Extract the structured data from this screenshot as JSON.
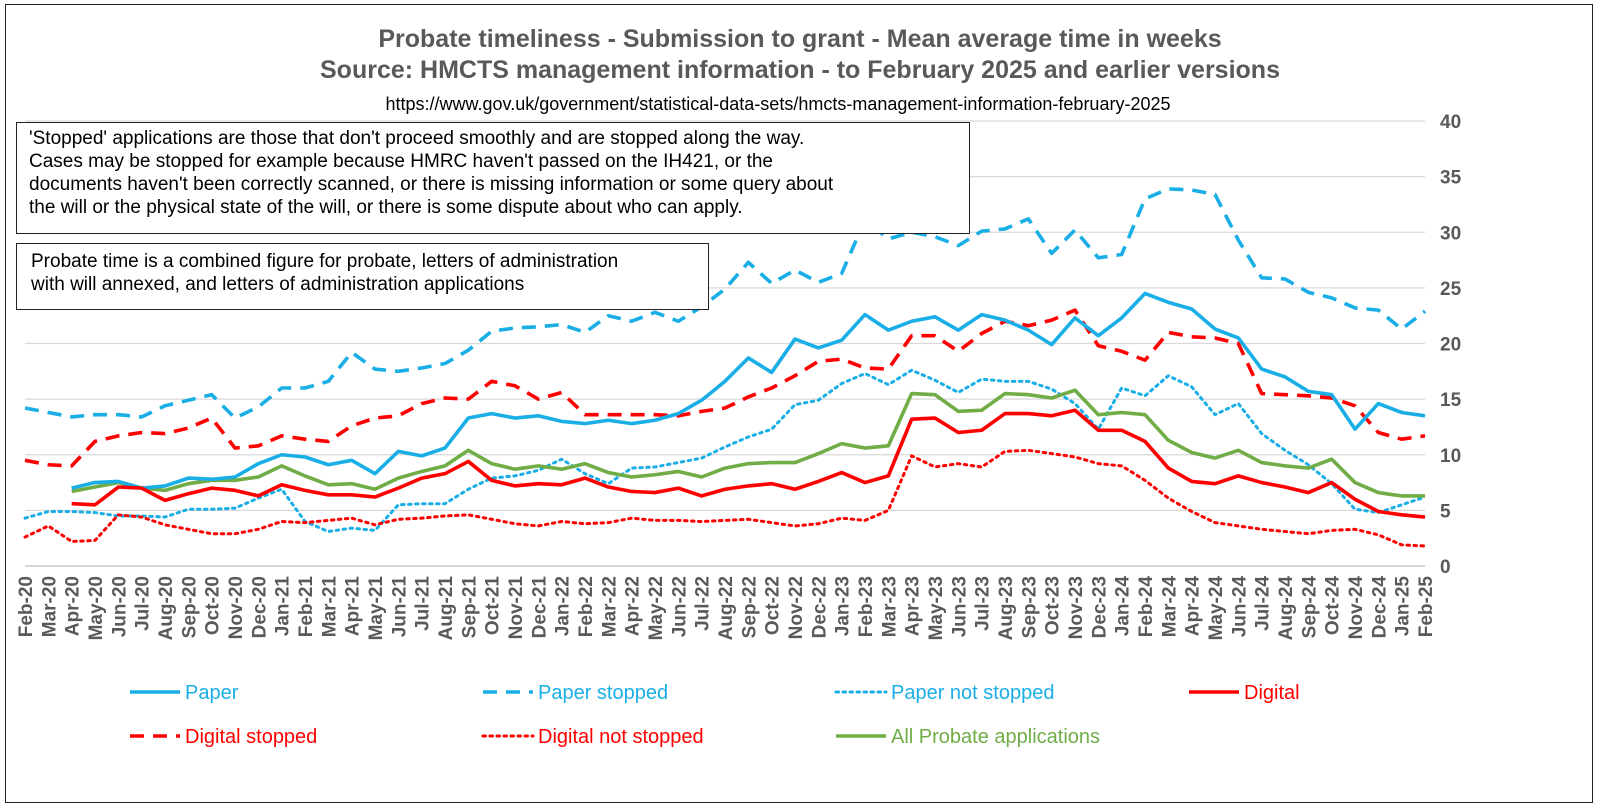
{
  "chart_data": {
    "type": "line",
    "title_lines": [
      "Probate timeliness - Submission to grant - Mean average time in weeks",
      "Source: HMCTS management information - to February 2025 and earlier versions"
    ],
    "subtitle": "https://www.gov.uk/government/statistical-data-sets/hmcts-management-information-february-2025",
    "xlabel": "",
    "ylabel": "",
    "ylim": [
      0,
      40
    ],
    "yticks": [
      0,
      5,
      10,
      15,
      20,
      25,
      30,
      35,
      40
    ],
    "y_axis_side": "right",
    "grid": true,
    "legend_position": "bottom",
    "categories": [
      "Feb-20",
      "Mar-20",
      "Apr-20",
      "May-20",
      "Jun-20",
      "Jul-20",
      "Aug-20",
      "Sep-20",
      "Oct-20",
      "Nov-20",
      "Dec-20",
      "Jan-21",
      "Feb-21",
      "Mar-21",
      "Apr-21",
      "May-21",
      "Jun-21",
      "Jul-21",
      "Aug-21",
      "Sep-21",
      "Oct-21",
      "Nov-21",
      "Dec-21",
      "Jan-22",
      "Feb-22",
      "Mar-22",
      "Apr-22",
      "May-22",
      "Jun-22",
      "Jul-22",
      "Aug-22",
      "Sep-22",
      "Oct-22",
      "Nov-22",
      "Dec-22",
      "Jan-23",
      "Feb-23",
      "Mar-23",
      "Apr-23",
      "May-23",
      "Jun-23",
      "Jul-23",
      "Aug-23",
      "Sep-23",
      "Oct-23",
      "Nov-23",
      "Dec-23",
      "Jan-24",
      "Feb-24",
      "Mar-24",
      "Apr-24",
      "May-24",
      "Jun-24",
      "Jul-24",
      "Aug-24",
      "Sep-24",
      "Oct-24",
      "Nov-24",
      "Dec-24",
      "Jan-25",
      "Feb-25"
    ],
    "series": [
      {
        "name": "Paper",
        "color": "#1aaee6",
        "dash": "solid",
        "values": [
          null,
          null,
          7.0,
          7.5,
          7.6,
          7.0,
          7.2,
          7.9,
          7.8,
          8.0,
          9.2,
          10.0,
          9.8,
          9.1,
          9.5,
          8.3,
          10.3,
          9.9,
          10.6,
          13.3,
          13.7,
          13.3,
          13.5,
          13.0,
          12.8,
          13.1,
          12.8,
          13.1,
          13.7,
          14.9,
          16.6,
          18.7,
          17.4,
          20.4,
          19.6,
          20.3,
          22.6,
          21.2,
          22.0,
          22.4,
          21.2,
          22.6,
          22.1,
          21.2,
          19.9,
          22.3,
          20.7,
          22.3,
          24.5,
          23.7,
          23.1,
          21.3,
          20.5,
          17.7,
          17.0,
          15.7,
          15.4,
          12.3,
          14.6,
          13.8,
          13.5
        ]
      },
      {
        "name": "Paper stopped",
        "color": "#1aaee6",
        "dash": "dashed",
        "values": [
          14.2,
          13.8,
          13.4,
          13.6,
          13.6,
          13.4,
          14.4,
          14.9,
          15.4,
          13.3,
          14.3,
          16.0,
          16.0,
          16.6,
          19.2,
          17.7,
          17.5,
          17.8,
          18.2,
          19.4,
          21.1,
          21.4,
          21.5,
          21.7,
          21.0,
          22.5,
          22.0,
          22.8,
          22.0,
          23.3,
          24.9,
          27.3,
          25.4,
          26.6,
          25.5,
          26.3,
          31.1,
          29.4,
          30.0,
          29.6,
          28.8,
          30.1,
          30.3,
          31.2,
          28.1,
          30.2,
          27.7,
          28.0,
          33.0,
          33.9,
          33.8,
          33.4,
          29.3,
          25.9,
          25.8,
          24.6,
          24.1,
          23.2,
          23.0,
          21.3,
          22.9
        ]
      },
      {
        "name": "Paper not stopped",
        "color": "#1aaee6",
        "dash": "dotted",
        "values": [
          4.3,
          4.9,
          4.9,
          4.8,
          4.5,
          4.5,
          4.4,
          5.1,
          5.1,
          5.2,
          6.1,
          6.9,
          4.0,
          3.1,
          3.4,
          3.2,
          5.5,
          5.6,
          5.6,
          6.9,
          7.9,
          8.1,
          8.6,
          9.6,
          8.3,
          7.4,
          8.8,
          8.9,
          9.3,
          9.7,
          10.7,
          11.6,
          12.3,
          14.5,
          14.9,
          16.4,
          17.3,
          16.3,
          17.6,
          16.7,
          15.6,
          16.8,
          16.6,
          16.6,
          15.9,
          14.6,
          12.3,
          16.0,
          15.3,
          17.1,
          16.1,
          13.6,
          14.6,
          11.9,
          10.4,
          9.1,
          7.4,
          5.1,
          4.8,
          5.5,
          6.2
        ]
      },
      {
        "name": "Digital",
        "color": "#ff0000",
        "dash": "solid",
        "values": [
          null,
          null,
          5.6,
          5.5,
          7.1,
          7.0,
          5.9,
          6.5,
          7.0,
          6.8,
          6.3,
          7.3,
          6.8,
          6.4,
          6.4,
          6.2,
          7.0,
          7.9,
          8.3,
          9.4,
          7.7,
          7.2,
          7.4,
          7.3,
          7.9,
          7.1,
          6.7,
          6.6,
          7.0,
          6.3,
          6.9,
          7.2,
          7.4,
          6.9,
          7.6,
          8.4,
          7.5,
          8.1,
          13.2,
          13.3,
          12.0,
          12.2,
          13.7,
          13.7,
          13.5,
          14.0,
          12.2,
          12.2,
          11.2,
          8.8,
          7.6,
          7.4,
          8.1,
          7.5,
          7.1,
          6.6,
          7.5,
          6.0,
          4.9,
          4.6,
          4.4
        ]
      },
      {
        "name": "Digital stopped",
        "color": "#ff0000",
        "dash": "dashed",
        "values": [
          9.5,
          9.1,
          9.0,
          11.2,
          11.7,
          12.0,
          11.9,
          12.4,
          13.3,
          10.6,
          10.8,
          11.7,
          11.4,
          11.2,
          12.6,
          13.3,
          13.5,
          14.6,
          15.1,
          15.0,
          16.6,
          16.2,
          15.0,
          15.6,
          13.6,
          13.6,
          13.6,
          13.6,
          13.5,
          13.9,
          14.2,
          15.2,
          16.0,
          17.1,
          18.4,
          18.6,
          17.8,
          17.7,
          20.7,
          20.7,
          19.3,
          20.9,
          22.0,
          21.6,
          22.1,
          23.0,
          19.8,
          19.3,
          18.5,
          21.0,
          20.6,
          20.5,
          20.0,
          15.5,
          15.4,
          15.3,
          15.1,
          14.4,
          12.0,
          11.4,
          11.7
        ]
      },
      {
        "name": "Digital not stopped",
        "color": "#ff0000",
        "dash": "dotted",
        "values": [
          2.6,
          3.6,
          2.2,
          2.3,
          4.6,
          4.4,
          3.7,
          3.3,
          2.9,
          2.9,
          3.3,
          4.0,
          3.9,
          4.1,
          4.3,
          3.7,
          4.2,
          4.3,
          4.5,
          4.6,
          4.2,
          3.8,
          3.6,
          4.0,
          3.8,
          3.9,
          4.3,
          4.1,
          4.1,
          4.0,
          4.1,
          4.2,
          3.9,
          3.6,
          3.8,
          4.3,
          4.1,
          5.0,
          9.9,
          8.9,
          9.2,
          8.9,
          10.3,
          10.4,
          10.1,
          9.8,
          9.2,
          9.0,
          7.7,
          6.1,
          4.9,
          3.9,
          3.6,
          3.3,
          3.1,
          2.9,
          3.2,
          3.3,
          2.8,
          1.9,
          1.8
        ]
      },
      {
        "name": "All Probate applications",
        "color": "#70ad47",
        "dash": "solid",
        "values": [
          null,
          null,
          6.7,
          7.1,
          7.5,
          7.0,
          6.8,
          7.4,
          7.7,
          7.7,
          8.0,
          9.0,
          8.1,
          7.3,
          7.4,
          6.9,
          7.9,
          8.5,
          9.0,
          10.4,
          9.2,
          8.7,
          9.0,
          8.7,
          9.2,
          8.4,
          8.0,
          8.2,
          8.5,
          8.0,
          8.8,
          9.2,
          9.3,
          9.3,
          10.1,
          11.0,
          10.6,
          10.8,
          15.5,
          15.4,
          13.9,
          14.0,
          15.5,
          15.4,
          15.1,
          15.8,
          13.6,
          13.8,
          13.6,
          11.3,
          10.2,
          9.7,
          10.4,
          9.3,
          9.0,
          8.8,
          9.6,
          7.5,
          6.6,
          6.3,
          6.3
        ]
      }
    ],
    "notes": [
      [
        "'Stopped' applications are those that don't proceed smoothly and are stopped along the way.",
        "Cases may be stopped for example because HMRC haven't passed on the IH421, or the",
        "documents haven't been correctly scanned, or there is missing information or some query about",
        "the will or the physical state of the will, or there is some dispute about who can apply."
      ],
      [
        "Probate time is a combined figure for probate, letters of administration",
        "with will annexed, and letters of administration applications"
      ]
    ]
  }
}
